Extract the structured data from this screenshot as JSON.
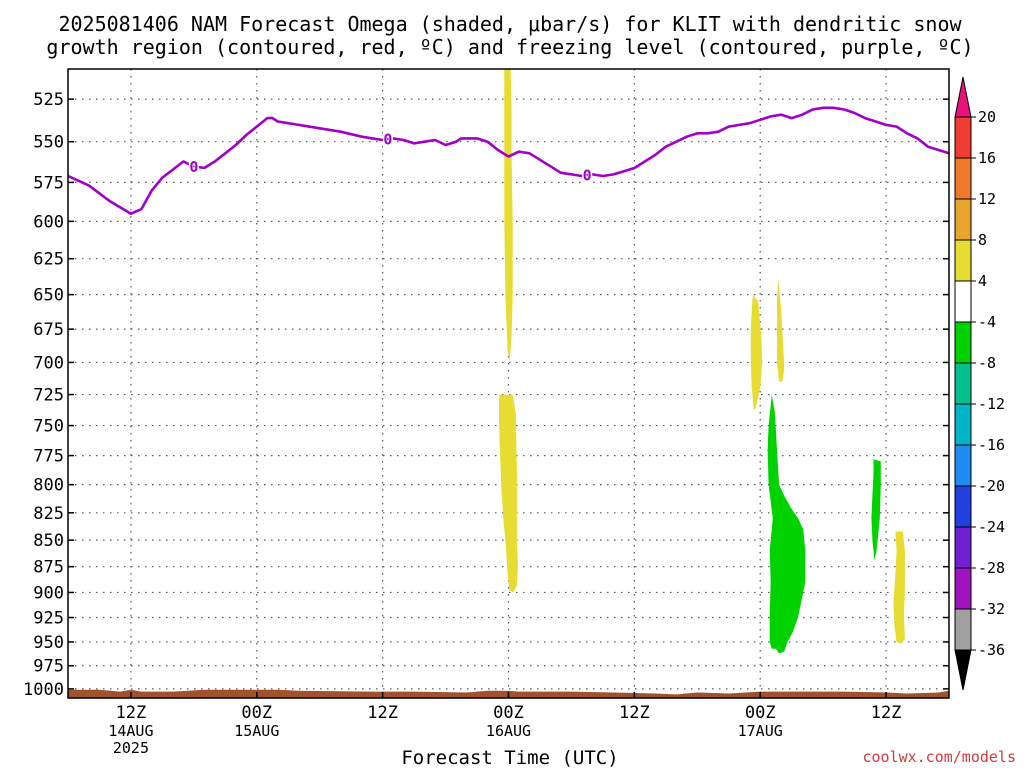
{
  "title_line1": "2025081406 NAM Forecast Omega (shaded, μbar/s) for KLIT with dendritic snow",
  "title_line2": "growth region (contoured, red, ºC) and freezing level (contoured, purple, ºC)",
  "credit": "coolwx.com/models",
  "chart_data": {
    "type": "heatmap",
    "title": "2025081406 NAM Forecast Omega (shaded, μbar/s) for KLIT with dendritic snow growth region (contoured, red, ºC) and freezing level (contoured, purple, ºC)",
    "xlabel": "Forecast Time (UTC)",
    "ylabel": "",
    "y_axis": {
      "scale": "log-pressure",
      "reversed": true,
      "ylim_hPa": [
        1010,
        508
      ],
      "ticks": [
        525,
        550,
        575,
        600,
        625,
        650,
        675,
        700,
        725,
        750,
        775,
        800,
        825,
        850,
        875,
        900,
        925,
        950,
        975,
        1000
      ]
    },
    "x_axis": {
      "xlim_hours": [
        0,
        84
      ],
      "ticks": [
        {
          "hour": 6,
          "label": "12Z",
          "sub1": "14AUG",
          "sub2": "2025"
        },
        {
          "hour": 18,
          "label": "00Z",
          "sub1": "15AUG",
          "sub2": ""
        },
        {
          "hour": 30,
          "label": "12Z",
          "sub1": "",
          "sub2": ""
        },
        {
          "hour": 42,
          "label": "00Z",
          "sub1": "16AUG",
          "sub2": ""
        },
        {
          "hour": 54,
          "label": "12Z",
          "sub1": "",
          "sub2": ""
        },
        {
          "hour": 66,
          "label": "00Z",
          "sub1": "17AUG",
          "sub2": ""
        },
        {
          "hour": 78,
          "label": "12Z",
          "sub1": "",
          "sub2": ""
        }
      ]
    },
    "grid": true,
    "legend": "right-colorbar",
    "colorbar": {
      "labels": [
        "20",
        "16",
        "12",
        "8",
        "4",
        "-4",
        "-8",
        "-12",
        "-16",
        "-20",
        "-24",
        "-28",
        "-32",
        "-36"
      ],
      "over_color": "#e8127a",
      "under_color": "#000000",
      "bands": [
        {
          "from": 16,
          "to": 20,
          "color": "#f03c32"
        },
        {
          "from": 12,
          "to": 16,
          "color": "#f0782a"
        },
        {
          "from": 8,
          "to": 12,
          "color": "#e8a62c"
        },
        {
          "from": 4,
          "to": 8,
          "color": "#e6dc32"
        },
        {
          "from": -4,
          "to": 4,
          "color": "#ffffff"
        },
        {
          "from": -8,
          "to": -4,
          "color": "#00d200"
        },
        {
          "from": -12,
          "to": -8,
          "color": "#00c08c"
        },
        {
          "from": -16,
          "to": -12,
          "color": "#00b4c8"
        },
        {
          "from": -20,
          "to": -16,
          "color": "#1e8cf0"
        },
        {
          "from": -24,
          "to": -20,
          "color": "#2040e0"
        },
        {
          "from": -28,
          "to": -24,
          "color": "#7020d2"
        },
        {
          "from": -32,
          "to": -28,
          "color": "#a014c0"
        },
        {
          "from": -36,
          "to": -32,
          "color": "#a0a0a0"
        }
      ]
    },
    "freezing_level": {
      "label": "0",
      "color": "#a000c8",
      "label_hours": [
        12,
        30.5,
        49.5
      ],
      "points": [
        [
          0,
          571
        ],
        [
          2,
          577
        ],
        [
          4,
          587
        ],
        [
          5,
          591
        ],
        [
          6,
          595
        ],
        [
          7,
          592
        ],
        [
          8,
          580
        ],
        [
          9,
          572
        ],
        [
          10,
          567
        ],
        [
          11,
          562
        ],
        [
          12,
          565
        ],
        [
          13,
          566
        ],
        [
          14,
          562
        ],
        [
          15,
          557
        ],
        [
          16,
          552
        ],
        [
          17,
          546
        ],
        [
          18,
          541
        ],
        [
          19,
          536
        ],
        [
          19.5,
          536
        ],
        [
          20,
          538
        ],
        [
          22,
          540
        ],
        [
          24,
          542
        ],
        [
          26,
          544
        ],
        [
          28,
          547
        ],
        [
          30,
          549
        ],
        [
          31,
          548
        ],
        [
          32,
          549
        ],
        [
          33,
          551
        ],
        [
          34,
          550
        ],
        [
          35,
          549
        ],
        [
          36,
          552
        ],
        [
          37,
          550
        ],
        [
          37.5,
          548
        ],
        [
          39,
          548
        ],
        [
          40,
          550
        ],
        [
          41,
          555
        ],
        [
          42,
          559
        ],
        [
          43,
          556
        ],
        [
          44,
          557
        ],
        [
          45,
          561
        ],
        [
          46,
          565
        ],
        [
          47,
          569
        ],
        [
          48,
          570
        ],
        [
          49,
          571
        ],
        [
          50,
          570
        ],
        [
          51,
          571
        ],
        [
          52,
          570
        ],
        [
          53,
          568
        ],
        [
          54,
          566
        ],
        [
          55,
          562
        ],
        [
          56,
          558
        ],
        [
          57,
          553
        ],
        [
          58,
          550
        ],
        [
          59,
          547
        ],
        [
          60,
          545
        ],
        [
          61,
          545
        ],
        [
          62,
          544
        ],
        [
          63,
          541
        ],
        [
          64,
          540
        ],
        [
          65,
          539
        ],
        [
          66,
          537
        ],
        [
          67,
          535
        ],
        [
          68,
          534
        ],
        [
          69,
          536
        ],
        [
          70,
          534
        ],
        [
          71,
          531
        ],
        [
          72,
          530
        ],
        [
          73,
          530
        ],
        [
          74,
          531
        ],
        [
          75,
          533
        ],
        [
          76,
          536
        ],
        [
          77,
          538
        ],
        [
          78,
          540
        ],
        [
          79,
          541
        ],
        [
          80,
          545
        ],
        [
          81,
          548
        ],
        [
          82,
          553
        ],
        [
          83,
          555
        ],
        [
          84,
          557
        ]
      ]
    },
    "omega_regions": [
      {
        "value": 6,
        "color": "#e6dc32",
        "points": [
          [
            41.6,
            508
          ],
          [
            42.2,
            508
          ],
          [
            42.3,
            530
          ],
          [
            42.3,
            560
          ],
          [
            42.4,
            600
          ],
          [
            42.4,
            650
          ],
          [
            42.3,
            680
          ],
          [
            42.1,
            700
          ],
          [
            41.9,
            690
          ],
          [
            41.7,
            650
          ],
          [
            41.6,
            600
          ],
          [
            41.6,
            550
          ]
        ]
      },
      {
        "value": 6,
        "color": "#e6dc32",
        "points": [
          [
            41.1,
            725
          ],
          [
            42.4,
            725
          ],
          [
            42.7,
            740
          ],
          [
            42.8,
            790
          ],
          [
            42.8,
            850
          ],
          [
            42.9,
            875
          ],
          [
            42.8,
            893
          ],
          [
            42.5,
            900
          ],
          [
            42.1,
            898
          ],
          [
            41.9,
            880
          ],
          [
            41.7,
            850
          ],
          [
            41.5,
            830
          ],
          [
            41.3,
            800
          ],
          [
            41.2,
            775
          ],
          [
            41.1,
            750
          ]
        ]
      },
      {
        "value": 5,
        "color": "#e6dc32",
        "points": [
          [
            65.3,
            650
          ],
          [
            65.8,
            655
          ],
          [
            66.1,
            680
          ],
          [
            66.2,
            700
          ],
          [
            66.0,
            720
          ],
          [
            65.6,
            735
          ],
          [
            65.4,
            738
          ],
          [
            65.2,
            720
          ],
          [
            65.1,
            700
          ],
          [
            65.1,
            675
          ],
          [
            65.2,
            660
          ]
        ]
      },
      {
        "value": 5,
        "color": "#e6dc32",
        "points": [
          [
            67.7,
            638
          ],
          [
            68.0,
            660
          ],
          [
            68.2,
            690
          ],
          [
            68.3,
            705
          ],
          [
            68.1,
            715
          ],
          [
            67.8,
            715
          ],
          [
            67.6,
            700
          ],
          [
            67.6,
            675
          ],
          [
            67.6,
            655
          ]
        ]
      },
      {
        "value": -6,
        "color": "#00d200",
        "points": [
          [
            67.1,
            725
          ],
          [
            67.4,
            740
          ],
          [
            67.6,
            770
          ],
          [
            67.8,
            800
          ],
          [
            68.3,
            810
          ],
          [
            68.9,
            820
          ],
          [
            69.6,
            830
          ],
          [
            70.1,
            840
          ],
          [
            70.3,
            860
          ],
          [
            70.3,
            890
          ],
          [
            69.9,
            910
          ],
          [
            69.6,
            925
          ],
          [
            69.1,
            940
          ],
          [
            68.6,
            950
          ],
          [
            68.3,
            960
          ],
          [
            67.8,
            962
          ],
          [
            67.5,
            957
          ],
          [
            67.1,
            957
          ],
          [
            66.9,
            950
          ],
          [
            66.9,
            920
          ],
          [
            67.0,
            890
          ],
          [
            66.9,
            860
          ],
          [
            67.2,
            830
          ],
          [
            66.8,
            800
          ],
          [
            66.7,
            770
          ],
          [
            66.8,
            750
          ]
        ]
      },
      {
        "value": -6,
        "color": "#00d200",
        "points": [
          [
            76.8,
            778
          ],
          [
            77.5,
            780
          ],
          [
            77.5,
            800
          ],
          [
            77.4,
            830
          ],
          [
            77.1,
            860
          ],
          [
            76.9,
            869
          ],
          [
            76.7,
            850
          ],
          [
            76.6,
            830
          ],
          [
            76.7,
            810
          ],
          [
            76.8,
            790
          ]
        ]
      },
      {
        "value": 5,
        "color": "#e6dc32",
        "points": [
          [
            78.9,
            842
          ],
          [
            79.6,
            842
          ],
          [
            79.8,
            860
          ],
          [
            79.8,
            900
          ],
          [
            79.7,
            920
          ],
          [
            79.8,
            947
          ],
          [
            79.4,
            952
          ],
          [
            79.0,
            950
          ],
          [
            78.8,
            935
          ],
          [
            78.7,
            910
          ],
          [
            78.9,
            880
          ],
          [
            79.0,
            860
          ]
        ]
      }
    ],
    "terrain": {
      "color": "#a0522d",
      "points": [
        [
          0,
          1001
        ],
        [
          3,
          1001
        ],
        [
          5,
          1003
        ],
        [
          6,
          1001
        ],
        [
          7,
          1003
        ],
        [
          10,
          1003
        ],
        [
          13,
          1001
        ],
        [
          18,
          1001
        ],
        [
          20,
          1001
        ],
        [
          22,
          1002
        ],
        [
          29,
          1003
        ],
        [
          33,
          1003
        ],
        [
          38,
          1004
        ],
        [
          40,
          1002
        ],
        [
          42,
          1002
        ],
        [
          43,
          1003
        ],
        [
          48,
          1003
        ],
        [
          52,
          1004
        ],
        [
          56,
          1005
        ],
        [
          58,
          1006
        ],
        [
          60,
          1004
        ],
        [
          63,
          1005
        ],
        [
          66,
          1003
        ],
        [
          70,
          1003
        ],
        [
          74,
          1003
        ],
        [
          78,
          1004
        ],
        [
          80,
          1005
        ],
        [
          83,
          1004
        ],
        [
          84,
          1002
        ]
      ]
    }
  }
}
